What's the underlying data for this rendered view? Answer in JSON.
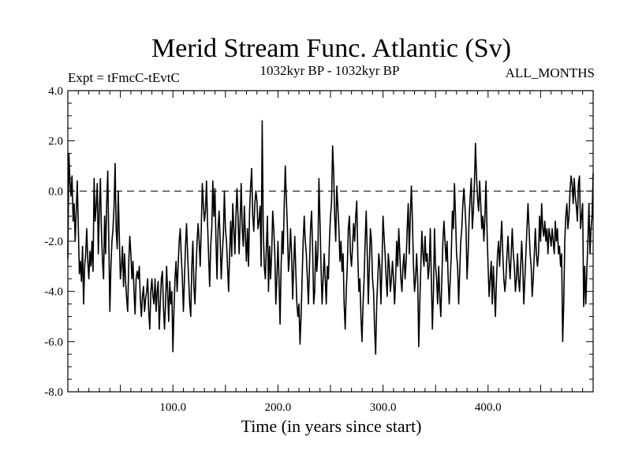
{
  "chart_data": {
    "type": "line",
    "title": "Merid Stream Func. Atlantic (Sv)",
    "header_left": "Expt = tFmcC-tEvtC",
    "header_center": "1032kyr BP - 1032kyr BP",
    "header_right": "ALL_MONTHS",
    "xlabel": "Time (in years since start)",
    "ylabel": "",
    "xlim": [
      0,
      500
    ],
    "ylim": [
      -8,
      4
    ],
    "xticks": [
      {
        "value": 100,
        "label": "100.0"
      },
      {
        "value": 200,
        "label": "200.0"
      },
      {
        "value": 300,
        "label": "300.0"
      },
      {
        "value": 400,
        "label": "400.0"
      }
    ],
    "yticks": [
      {
        "value": 4,
        "label": "4.0"
      },
      {
        "value": 2,
        "label": "2.0"
      },
      {
        "value": 0,
        "label": "0.0"
      },
      {
        "value": -2,
        "label": "-2.0"
      },
      {
        "value": -4,
        "label": "-4.0"
      },
      {
        "value": -6,
        "label": "-6.0"
      },
      {
        "value": -8,
        "label": "-8.0"
      }
    ],
    "reference_line": {
      "y": 0,
      "style": "dashed"
    },
    "grid": false,
    "series": [
      {
        "name": "Merid Stream Func. Atlantic",
        "color": "#000000",
        "x": [
          0,
          1,
          2,
          3,
          4,
          5,
          6,
          7,
          8,
          9,
          10,
          11,
          12,
          13,
          14,
          15,
          16,
          17,
          18,
          19,
          20,
          21,
          22,
          23,
          24,
          25,
          26,
          27,
          28,
          29,
          30,
          31,
          32,
          33,
          34,
          35,
          36,
          37,
          38,
          39,
          40,
          41,
          42,
          43,
          44,
          45,
          46,
          47,
          48,
          49,
          50,
          51,
          52,
          53,
          54,
          55,
          56,
          57,
          58,
          59,
          60,
          61,
          62,
          63,
          64,
          65,
          66,
          67,
          68,
          69,
          70,
          71,
          72,
          73,
          74,
          75,
          76,
          77,
          78,
          79,
          80,
          81,
          82,
          83,
          84,
          85,
          86,
          87,
          88,
          89,
          90,
          91,
          92,
          93,
          94,
          95,
          96,
          97,
          98,
          99,
          100,
          101,
          102,
          103,
          104,
          105,
          106,
          107,
          108,
          109,
          110,
          111,
          112,
          113,
          114,
          115,
          116,
          117,
          118,
          119,
          120,
          121,
          122,
          123,
          124,
          125,
          126,
          127,
          128,
          129,
          130,
          131,
          132,
          133,
          134,
          135,
          136,
          137,
          138,
          139,
          140,
          141,
          142,
          143,
          144,
          145,
          146,
          147,
          148,
          149,
          150,
          151,
          152,
          153,
          154,
          155,
          156,
          157,
          158,
          159,
          160,
          161,
          162,
          163,
          164,
          165,
          166,
          167,
          168,
          169,
          170,
          171,
          172,
          173,
          174,
          175,
          176,
          177,
          178,
          179,
          180,
          181,
          182,
          183,
          184,
          185,
          186,
          187,
          188,
          189,
          190,
          191,
          192,
          193,
          194,
          195,
          196,
          197,
          198,
          199,
          200,
          201,
          202,
          203,
          204,
          205,
          206,
          207,
          208,
          209,
          210,
          211,
          212,
          213,
          214,
          215,
          216,
          217,
          218,
          219,
          220,
          221,
          222,
          223,
          224,
          225,
          226,
          227,
          228,
          229,
          230,
          231,
          232,
          233,
          234,
          235,
          236,
          237,
          238,
          239,
          240,
          241,
          242,
          243,
          244,
          245,
          246,
          247,
          248,
          249,
          250,
          251,
          252,
          253,
          254,
          255,
          256,
          257,
          258,
          259,
          260,
          261,
          262,
          263,
          264,
          265,
          266,
          267,
          268,
          269,
          270,
          271,
          272,
          273,
          274,
          275,
          276,
          277,
          278,
          279,
          280,
          281,
          282,
          283,
          284,
          285,
          286,
          287,
          288,
          289,
          290,
          291,
          292,
          293,
          294,
          295,
          296,
          297,
          298,
          299,
          300,
          301,
          302,
          303,
          304,
          305,
          306,
          307,
          308,
          309,
          310,
          311,
          312,
          313,
          314,
          315,
          316,
          317,
          318,
          319,
          320,
          321,
          322,
          323,
          324,
          325,
          326,
          327,
          328,
          329,
          330,
          331,
          332,
          333,
          334,
          335,
          336,
          337,
          338,
          339,
          340,
          341,
          342,
          343,
          344,
          345,
          346,
          347,
          348,
          349,
          350,
          351,
          352,
          353,
          354,
          355,
          356,
          357,
          358,
          359,
          360,
          361,
          362,
          363,
          364,
          365,
          366,
          367,
          368,
          369,
          370,
          371,
          372,
          373,
          374,
          375,
          376,
          377,
          378,
          379,
          380,
          381,
          382,
          383,
          384,
          385,
          386,
          387,
          388,
          389,
          390,
          391,
          392,
          393,
          394,
          395,
          396,
          397,
          398,
          399,
          400,
          401,
          402,
          403,
          404,
          405,
          406,
          407,
          408,
          409,
          410,
          411,
          412,
          413,
          414,
          415,
          416,
          417,
          418,
          419,
          420,
          421,
          422,
          423,
          424,
          425,
          426,
          427,
          428,
          429,
          430,
          431,
          432,
          433,
          434,
          435,
          436,
          437,
          438,
          439,
          440,
          441,
          442,
          443,
          444,
          445,
          446,
          447,
          448,
          449,
          450,
          451,
          452,
          453,
          454,
          455,
          456,
          457,
          458,
          459,
          460,
          461,
          462,
          463,
          464,
          465,
          466,
          467,
          468,
          469,
          470,
          471,
          472,
          473,
          474,
          475,
          476,
          477,
          478,
          479,
          480,
          481,
          482,
          483,
          484,
          485,
          486,
          487,
          488,
          489,
          490,
          491,
          492,
          493,
          494,
          495,
          496,
          497,
          498,
          499,
          500
        ],
        "y": [
          -2.7,
          1.5,
          0.4,
          -0.2,
          0.6,
          -1.2,
          -0.5,
          -2.0,
          -0.8,
          0.4,
          -1.5,
          -3.3,
          -2.8,
          -3.6,
          -2.2,
          -4.5,
          -3.0,
          -2.5,
          -1.5,
          -2.8,
          -3.5,
          -2.4,
          -3.0,
          -2.0,
          -3.2,
          0.5,
          -1.2,
          -0.6,
          0.3,
          -2.5,
          -0.8,
          0.5,
          -1.6,
          -2.8,
          -3.5,
          -1.0,
          -2.5,
          -0.5,
          0.8,
          -2.0,
          -4.8,
          -3.0,
          -2.0,
          -1.5,
          -0.6,
          1.1,
          -1.5,
          -2.3,
          0.0,
          -1.8,
          -3.5,
          -3.0,
          -2.2,
          -3.8,
          -2.5,
          -3.6,
          -4.3,
          -4.8,
          -2.8,
          -1.8,
          -2.5,
          -3.5,
          -2.8,
          -4.0,
          -4.9,
          -3.5,
          -3.2,
          -3.5,
          -3.0,
          -4.3,
          -5.0,
          -4.2,
          -3.8,
          -4.8,
          -4.3,
          -4.0,
          -3.5,
          -4.8,
          -5.5,
          -4.0,
          -3.5,
          -4.2,
          -4.5,
          -3.5,
          -4.8,
          -4.0,
          -3.6,
          -5.5,
          -4.5,
          -3.5,
          -3.2,
          -4.6,
          -5.5,
          -4.5,
          -3.0,
          -4.0,
          -5.2,
          -3.6,
          -4.5,
          -4.0,
          -6.4,
          -4.8,
          -3.5,
          -2.8,
          -4.0,
          -3.0,
          -2.0,
          -1.5,
          -2.6,
          -3.5,
          -4.8,
          -3.5,
          -2.2,
          -1.3,
          -2.5,
          -3.5,
          -4.5,
          -5.0,
          -3.0,
          -2.0,
          -3.8,
          -4.5,
          -3.2,
          -2.0,
          -1.3,
          -2.0,
          -3.0,
          -1.5,
          0.3,
          -0.5,
          -1.2,
          -0.8,
          0.4,
          -1.3,
          -2.6,
          -3.8,
          -2.2,
          -1.5,
          0.4,
          -1.0,
          0.1,
          -2.0,
          -3.5,
          -1.5,
          -0.8,
          -2.0,
          -3.5,
          -2.5,
          -1.8,
          0.0,
          -1.5,
          -2.0,
          -3.0,
          -4.0,
          -2.5,
          -1.2,
          -2.6,
          -0.5,
          -1.5,
          -2.5,
          -1.0,
          0.1,
          -1.0,
          -2.5,
          -1.2,
          0.3,
          -1.5,
          -2.2,
          -0.6,
          -1.8,
          -2.8,
          -1.5,
          -3.0,
          -0.8,
          0.2,
          0.9,
          -1.0,
          -1.6,
          -0.5,
          0.0,
          -0.4,
          -1.5,
          -1.2,
          -0.6,
          -3.0,
          2.8,
          -1.5,
          -3.0,
          -3.5,
          -2.2,
          -1.0,
          -4.0,
          -2.2,
          -3.5,
          -2.5,
          -0.8,
          -1.5,
          -2.5,
          -4.5,
          -3.5,
          -2.0,
          -3.5,
          -5.3,
          -3.0,
          -1.6,
          -2.5,
          -0.5,
          1.0,
          -0.3,
          -1.5,
          -3.2,
          -2.6,
          -1.5,
          -2.5,
          -4.3,
          -3.0,
          -1.8,
          -3.2,
          -4.5,
          -5.0,
          -4.5,
          -6.1,
          -5.0,
          -3.5,
          -2.0,
          -1.0,
          -2.0,
          -2.5,
          -3.5,
          -4.5,
          -3.0,
          -1.5,
          -0.8,
          -2.3,
          -4.5,
          -4.0,
          -2.0,
          -3.2,
          -2.5,
          0.5,
          -1.2,
          -3.0,
          -4.5,
          -3.5,
          -2.5,
          -3.5,
          -4.5,
          -3.0,
          -3.5,
          -2.0,
          -1.0,
          -0.5,
          1.8,
          0.8,
          -1.0,
          -2.0,
          0.2,
          -0.6,
          -1.5,
          -2.8,
          -2.0,
          -3.2,
          -2.5,
          -4.5,
          -5.5,
          -4.0,
          -3.0,
          -1.5,
          -1.0,
          -2.5,
          -3.0,
          -2.2,
          -1.3,
          -2.0,
          -1.0,
          -0.4,
          -2.6,
          -4.0,
          -3.5,
          -5.0,
          -6.0,
          -4.5,
          -3.5,
          -2.0,
          -0.8,
          -2.5,
          -4.5,
          -3.0,
          -1.5,
          -2.0,
          -3.5,
          -4.0,
          -5.5,
          -6.5,
          -4.5,
          -3.5,
          -2.5,
          -3.0,
          -4.5,
          -3.0,
          -1.0,
          -1.8,
          -2.5,
          -3.5,
          -4.2,
          -2.5,
          -3.0,
          -4.0,
          -3.5,
          -2.8,
          -3.5,
          -4.5,
          -3.5,
          -2.0,
          -3.0,
          -1.5,
          -2.5,
          -3.5,
          -4.0,
          -3.0,
          -2.5,
          -3.5,
          -2.8,
          -1.5,
          -0.5,
          -2.5,
          -1.0,
          0.2,
          -1.2,
          -3.0,
          -4.0,
          -3.5,
          -2.5,
          -3.5,
          -6.2,
          -4.5,
          -3.0,
          -1.6,
          -2.5,
          -3.0,
          -1.8,
          -2.8,
          -2.5,
          -3.5,
          -3.0,
          -1.5,
          -3.5,
          -5.5,
          -4.0,
          -1.5,
          -3.0,
          -3.5,
          -4.5,
          -3.0,
          -4.2,
          -5.0,
          -3.5,
          -2.0,
          -1.2,
          -2.0,
          -2.8,
          -2.0,
          -3.5,
          -4.5,
          -3.5,
          -2.5,
          -0.8,
          -1.5,
          0.3,
          -1.0,
          -2.5,
          -3.0,
          -4.5,
          -3.2,
          -2.0,
          -1.5,
          -0.5,
          0.1,
          -0.6,
          -1.5,
          -3.5,
          -2.5,
          -1.0,
          -0.2,
          0.5,
          -1.5,
          -0.8,
          0.3,
          1.9,
          0.6,
          -0.3,
          -0.8,
          0.4,
          -0.5,
          -1.5,
          -1.0,
          -2.0,
          -1.0,
          0.4,
          -1.6,
          -3.0,
          -4.2,
          -3.5,
          -2.8,
          -4.5,
          -3.0,
          -4.0,
          -5.0,
          -3.5,
          -2.5,
          -2.0,
          -3.0,
          -2.0,
          -1.2,
          -2.5,
          -3.5,
          -4.0,
          -3.5,
          -2.5,
          -1.8,
          -2.8,
          -3.5,
          -2.5,
          -1.5,
          -2.5,
          -3.0,
          -4.0,
          -3.5,
          -2.5,
          -3.5,
          -4.0,
          -3.0,
          -2.0,
          -3.0,
          -4.5,
          -3.5,
          -2.5,
          -1.5,
          -0.5,
          -1.5,
          -2.5,
          -3.0,
          -4.2,
          -3.5,
          -2.5,
          -1.5,
          -2.5,
          -3.0,
          -2.5,
          -1.0,
          -2.0,
          -0.5,
          -1.5,
          -1.8,
          -1.2,
          -2.0,
          -1.5,
          -2.5,
          -1.5,
          -1.8,
          -2.2,
          -1.5,
          -2.0,
          -2.5,
          -1.2,
          -2.0,
          -1.5,
          -2.5,
          -2.2,
          -3.0,
          -2.5,
          -6.0,
          -4.5,
          -2.0,
          -1.0,
          -0.5,
          -1.5,
          -1.0,
          0.0,
          0.6,
          0.3,
          -0.5,
          0.5,
          -0.2,
          -0.6,
          -1.2,
          0.3,
          0.6,
          -1.5,
          -1.0,
          -0.5,
          -4.6,
          -3.0,
          -4.5,
          -3.2,
          -2.0,
          -0.5,
          -2.5,
          -1.5,
          -1.0,
          0.7
        ]
      }
    ]
  }
}
